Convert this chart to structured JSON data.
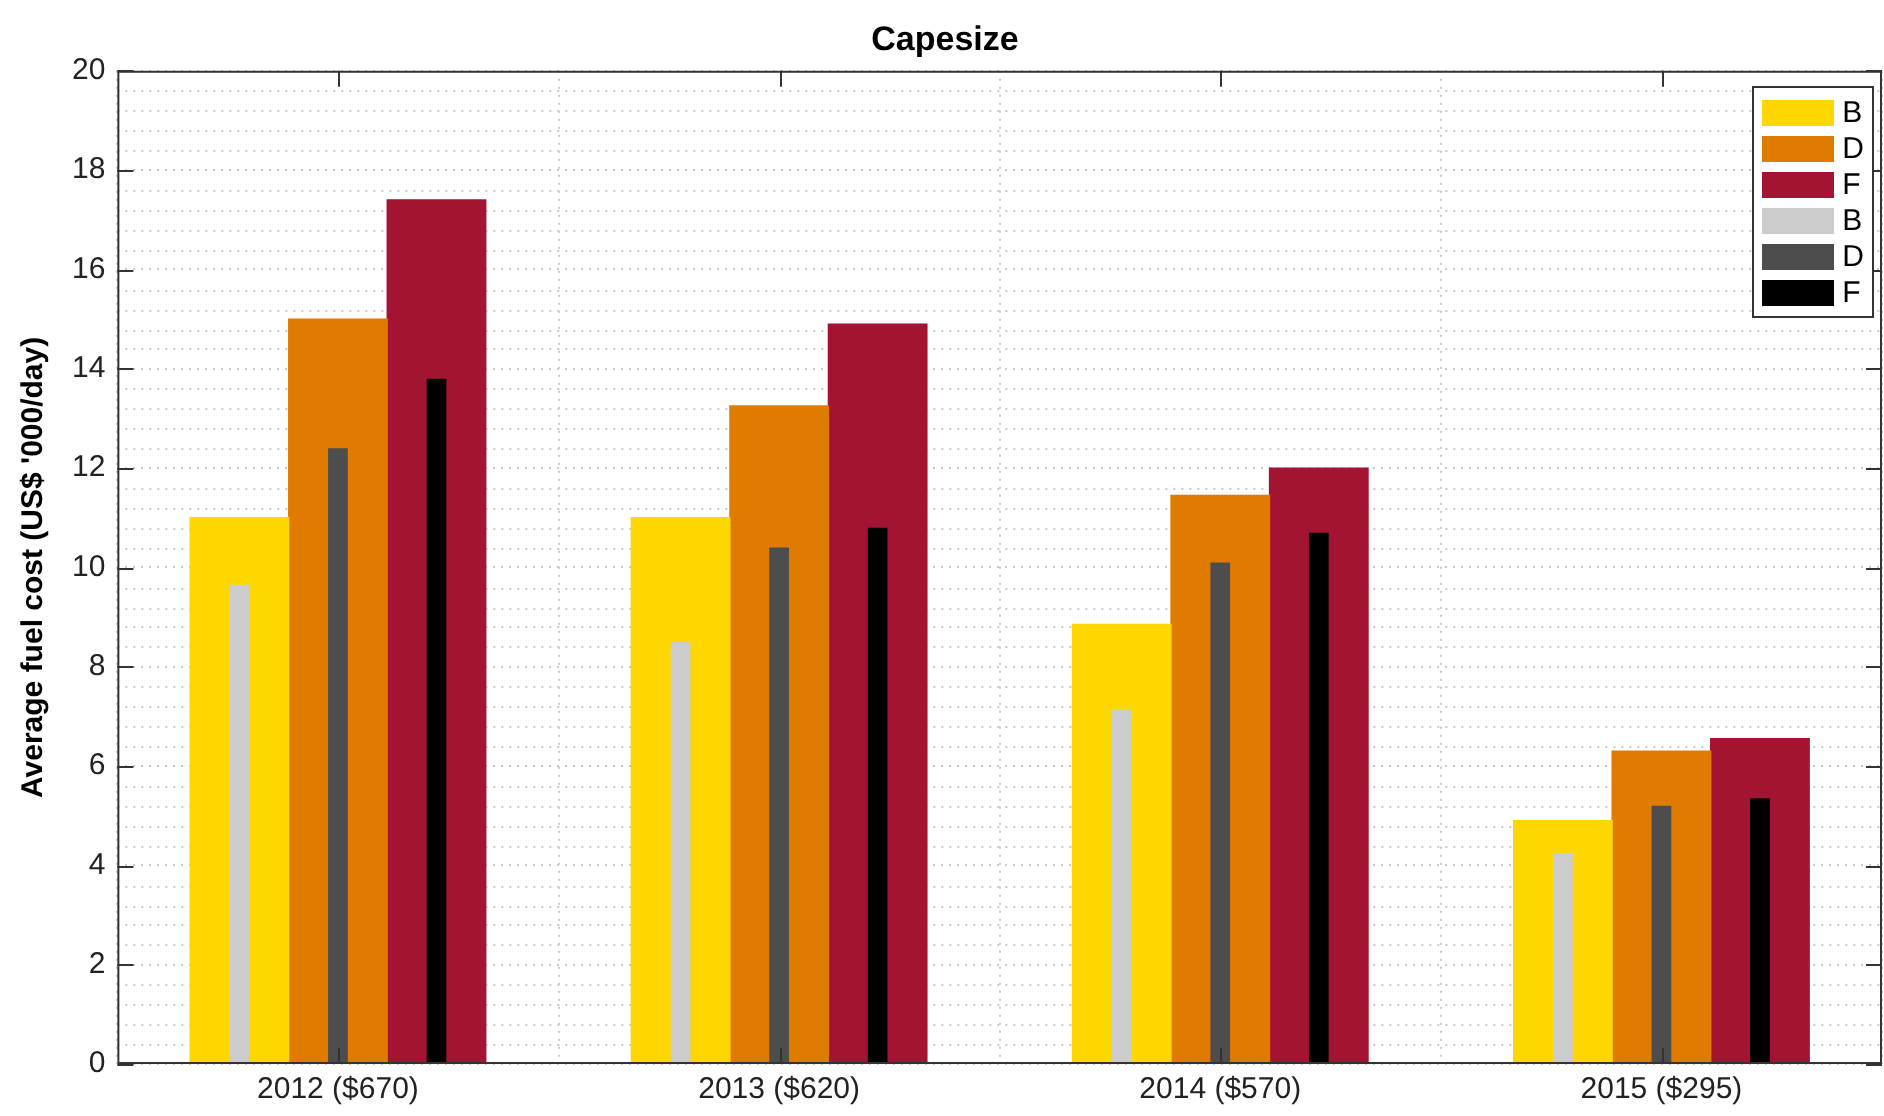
{
  "chart_data": {
    "type": "bar",
    "title": "Capesize",
    "ylabel": "Average fuel cost (US$ '000/day)",
    "categories": [
      "2012 ($670)",
      "2013 ($620)",
      "2014 ($570)",
      "2015 ($295)"
    ],
    "series": [
      {
        "name": "B",
        "color": "#ffd700",
        "values": [
          11.0,
          11.0,
          8.85,
          4.9
        ]
      },
      {
        "name": "D",
        "color": "#df7c00",
        "values": [
          15.0,
          13.25,
          11.45,
          6.3
        ]
      },
      {
        "name": "F",
        "color": "#a21431",
        "values": [
          17.4,
          14.9,
          12.0,
          6.55
        ]
      },
      {
        "name": "B",
        "color": "#cccccc",
        "values": [
          9.65,
          8.5,
          7.15,
          4.25
        ]
      },
      {
        "name": "D",
        "color": "#4d4d4d",
        "values": [
          12.4,
          10.4,
          10.1,
          5.2
        ]
      },
      {
        "name": "F",
        "color": "#000000",
        "values": [
          13.8,
          10.8,
          10.7,
          5.35
        ]
      }
    ],
    "ylim": [
      0,
      20
    ],
    "yticks": [
      0,
      2,
      4,
      6,
      8,
      10,
      12,
      14,
      16,
      18,
      20
    ],
    "grid": true,
    "legend": "top right"
  }
}
